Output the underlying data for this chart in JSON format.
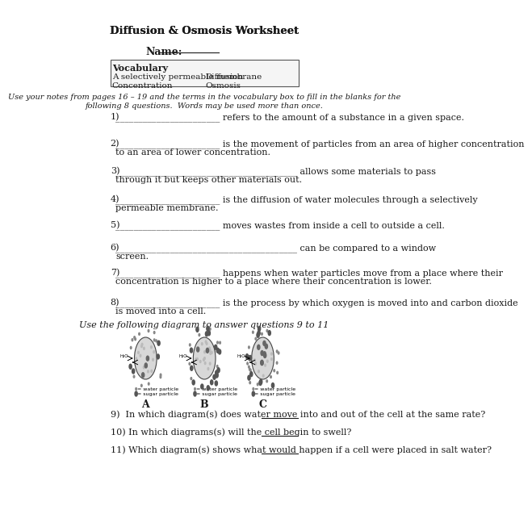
{
  "title": "Diffusion & Osmosis Worksheet",
  "name_label": "Name:",
  "vocab_header": "Vocabulary",
  "vocab_col1": [
    "A selectively permeable membrane",
    "Concentration"
  ],
  "vocab_col2": [
    "Diffusion",
    "Osmosis"
  ],
  "instructions": "Use your notes from pages 16 – 19 and the terms in the vocabulary box to fill in the blanks for the\nfollowing 8 questions.  Words may be used more than once.",
  "questions": [
    "1)  _______________________ refers to the amount of a substance in a given space.",
    "2)  _______________________ is the movement of particles from an area of higher concentration\n    to an area of lower concentration.",
    "3)  ________________________________________ allows some materials to pass\n    through it but keeps other materials out.",
    "4)  _______________________ is the diffusion of water molecules through a selectively\n    permeable membrane.",
    "5)  _______________________ moves wastes from inside a cell to outside a cell.",
    "6)  ________________________________________ can be compared to a window\n    screen.",
    "7)  _______________________ happens when water particles move from a place where their\n    concentration is higher to a place where their concentration is lower.",
    "8)  _______________________ is the process by which oxygen is moved into and carbon dioxide\n    is moved into a cell."
  ],
  "diagram_instructions": "Use the following diagram to answer questions 9 to 11",
  "diagram_labels": [
    "A",
    "B",
    "C"
  ],
  "q9": "9)  In which diagram(s) does water move into and out of the cell at the same rate?",
  "q10": "10) In which diagrams(s) will the cell begin to swell?",
  "q11": "11) Which diagram(s) shows what would happen if a cell were placed in salt water?",
  "bg_color": "#ffffff",
  "text_color": "#1a1a1a",
  "border_color": "#555555"
}
